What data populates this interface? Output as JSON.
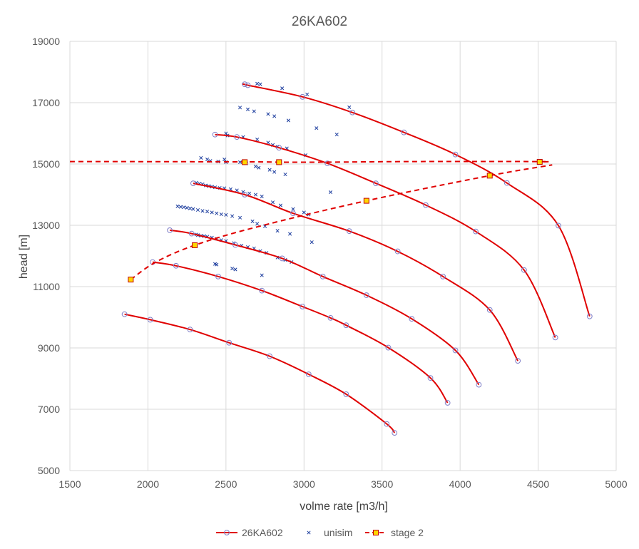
{
  "chart_data": {
    "type": "scatter",
    "title": "26KA602",
    "xlabel": "volme rate [m3/h]",
    "ylabel": "head [m]",
    "xlim": [
      1500,
      5000
    ],
    "ylim": [
      5000,
      19000
    ],
    "xticks": [
      1500,
      2000,
      2500,
      3000,
      3500,
      4000,
      4500,
      5000
    ],
    "yticks": [
      5000,
      7000,
      9000,
      11000,
      13000,
      15000,
      17000,
      19000
    ],
    "grid": true,
    "legend_position": "bottom",
    "colors": {
      "curve": "#e00000",
      "marker": "#7f7fc8",
      "unisim": "#1f3f9f",
      "stage_fill": "#ffd700",
      "stage_edge": "#c00000",
      "grid": "#d9d9d9",
      "text": "#595959"
    },
    "legend": [
      "26KA602",
      "unisim",
      "stage 2"
    ],
    "series": [
      {
        "name": "26KA602",
        "style": "line-circle",
        "curves": [
          [
            [
              1850,
              10100
            ],
            [
              2015,
              9920
            ],
            [
              2270,
              9600
            ],
            [
              2520,
              9170
            ],
            [
              2780,
              8730
            ],
            [
              3030,
              8140
            ],
            [
              3270,
              7490
            ],
            [
              3530,
              6520
            ],
            [
              3580,
              6230
            ]
          ],
          [
            [
              2030,
              11800
            ],
            [
              2180,
              11680
            ],
            [
              2450,
              11330
            ],
            [
              2730,
              10870
            ],
            [
              2990,
              10350
            ],
            [
              3170,
              9980
            ],
            [
              3270,
              9740
            ],
            [
              3540,
              9010
            ],
            [
              3810,
              8020
            ],
            [
              3920,
              7210
            ]
          ],
          [
            [
              2140,
              12840
            ],
            [
              2280,
              12730
            ],
            [
              2560,
              12360
            ],
            [
              2860,
              11920
            ],
            [
              3120,
              11330
            ],
            [
              3400,
              10720
            ],
            [
              3690,
              9950
            ],
            [
              3970,
              8920
            ],
            [
              4120,
              7800
            ]
          ],
          [
            [
              2290,
              14370
            ],
            [
              2620,
              14000
            ],
            [
              2930,
              13390
            ],
            [
              3290,
              12810
            ],
            [
              3600,
              12150
            ],
            [
              3890,
              11330
            ],
            [
              4190,
              10240
            ],
            [
              4370,
              8580
            ]
          ],
          [
            [
              2430,
              15960
            ],
            [
              2570,
              15880
            ],
            [
              2840,
              15530
            ],
            [
              3150,
              15020
            ],
            [
              3460,
              14370
            ],
            [
              3780,
              13660
            ],
            [
              4100,
              12800
            ],
            [
              4410,
              11540
            ],
            [
              4610,
              9340
            ]
          ],
          [
            [
              2620,
              17600
            ],
            [
              2640,
              17570
            ],
            [
              2990,
              17190
            ],
            [
              3310,
              16680
            ],
            [
              3640,
              16030
            ],
            [
              3970,
              15310
            ],
            [
              4300,
              14380
            ],
            [
              4630,
              12990
            ],
            [
              4830,
              10030
            ]
          ]
        ]
      },
      {
        "name": "unisim",
        "style": "x-marker",
        "points": [
          [
            2700,
            17620
          ],
          [
            2720,
            17600
          ],
          [
            2860,
            17470
          ],
          [
            3020,
            17270
          ],
          [
            3290,
            16850
          ],
          [
            2590,
            16840
          ],
          [
            2640,
            16780
          ],
          [
            2680,
            16720
          ],
          [
            2770,
            16630
          ],
          [
            2810,
            16560
          ],
          [
            2900,
            16420
          ],
          [
            3080,
            16170
          ],
          [
            3210,
            15960
          ],
          [
            2500,
            16000
          ],
          [
            2510,
            15930
          ],
          [
            2610,
            15880
          ],
          [
            2700,
            15800
          ],
          [
            2770,
            15700
          ],
          [
            2800,
            15620
          ],
          [
            2830,
            15560
          ],
          [
            2890,
            15510
          ],
          [
            3010,
            15290
          ],
          [
            2340,
            15200
          ],
          [
            2380,
            15150
          ],
          [
            2400,
            15100
          ],
          [
            2450,
            15080
          ],
          [
            2490,
            15150
          ],
          [
            2500,
            15060
          ],
          [
            2590,
            15060
          ],
          [
            2630,
            15020
          ],
          [
            2690,
            14920
          ],
          [
            2710,
            14880
          ],
          [
            2780,
            14810
          ],
          [
            2810,
            14740
          ],
          [
            2880,
            14660
          ],
          [
            3170,
            14080
          ],
          [
            2310,
            14390
          ],
          [
            2330,
            14360
          ],
          [
            2350,
            14340
          ],
          [
            2370,
            14300
          ],
          [
            2390,
            14280
          ],
          [
            2410,
            14260
          ],
          [
            2430,
            14240
          ],
          [
            2460,
            14220
          ],
          [
            2490,
            14210
          ],
          [
            2530,
            14180
          ],
          [
            2570,
            14140
          ],
          [
            2610,
            14090
          ],
          [
            2650,
            14040
          ],
          [
            2690,
            14000
          ],
          [
            2730,
            13940
          ],
          [
            2800,
            13750
          ],
          [
            2850,
            13650
          ],
          [
            2930,
            13530
          ],
          [
            3000,
            13420
          ],
          [
            3030,
            13350
          ],
          [
            2190,
            13620
          ],
          [
            2210,
            13600
          ],
          [
            2230,
            13590
          ],
          [
            2250,
            13570
          ],
          [
            2270,
            13550
          ],
          [
            2290,
            13530
          ],
          [
            2320,
            13500
          ],
          [
            2350,
            13470
          ],
          [
            2380,
            13450
          ],
          [
            2410,
            13420
          ],
          [
            2440,
            13390
          ],
          [
            2470,
            13360
          ],
          [
            2500,
            13340
          ],
          [
            2540,
            13300
          ],
          [
            2590,
            13250
          ],
          [
            2670,
            13130
          ],
          [
            2700,
            13050
          ],
          [
            2750,
            12970
          ],
          [
            2830,
            12820
          ],
          [
            2910,
            12720
          ],
          [
            3050,
            12450
          ],
          [
            2310,
            12700
          ],
          [
            2320,
            12680
          ],
          [
            2340,
            12660
          ],
          [
            2360,
            12650
          ],
          [
            2380,
            12630
          ],
          [
            2410,
            12600
          ],
          [
            2440,
            12560
          ],
          [
            2470,
            12520
          ],
          [
            2500,
            12490
          ],
          [
            2550,
            12420
          ],
          [
            2600,
            12340
          ],
          [
            2640,
            12290
          ],
          [
            2680,
            12250
          ],
          [
            2720,
            12160
          ],
          [
            2760,
            12100
          ],
          [
            2830,
            11950
          ],
          [
            2880,
            11870
          ],
          [
            2920,
            11800
          ],
          [
            2430,
            11740
          ],
          [
            2440,
            11720
          ],
          [
            2540,
            11590
          ],
          [
            2560,
            11560
          ],
          [
            2730,
            11370
          ]
        ]
      },
      {
        "name": "stage 2",
        "style": "dashed-square",
        "lines": [
          [
            [
              1500,
              15080
            ],
            [
              2620,
              15070
            ],
            [
              2840,
              15060
            ],
            [
              3150,
              15060
            ],
            [
              3700,
              15080
            ],
            [
              4500,
              15080
            ],
            [
              4530,
              15070
            ]
          ],
          [
            [
              1890,
              11230
            ],
            [
              2050,
              11800
            ],
            [
              2300,
              12350
            ],
            [
              2700,
              12950
            ],
            [
              3400,
              13800
            ],
            [
              4190,
              14620
            ],
            [
              4590,
              14970
            ]
          ]
        ],
        "markers": [
          [
            1890,
            11230
          ],
          [
            2300,
            12350
          ],
          [
            2620,
            15060
          ],
          [
            2840,
            15060
          ],
          [
            3400,
            13800
          ],
          [
            4190,
            14620
          ],
          [
            4510,
            15070
          ]
        ]
      }
    ]
  }
}
